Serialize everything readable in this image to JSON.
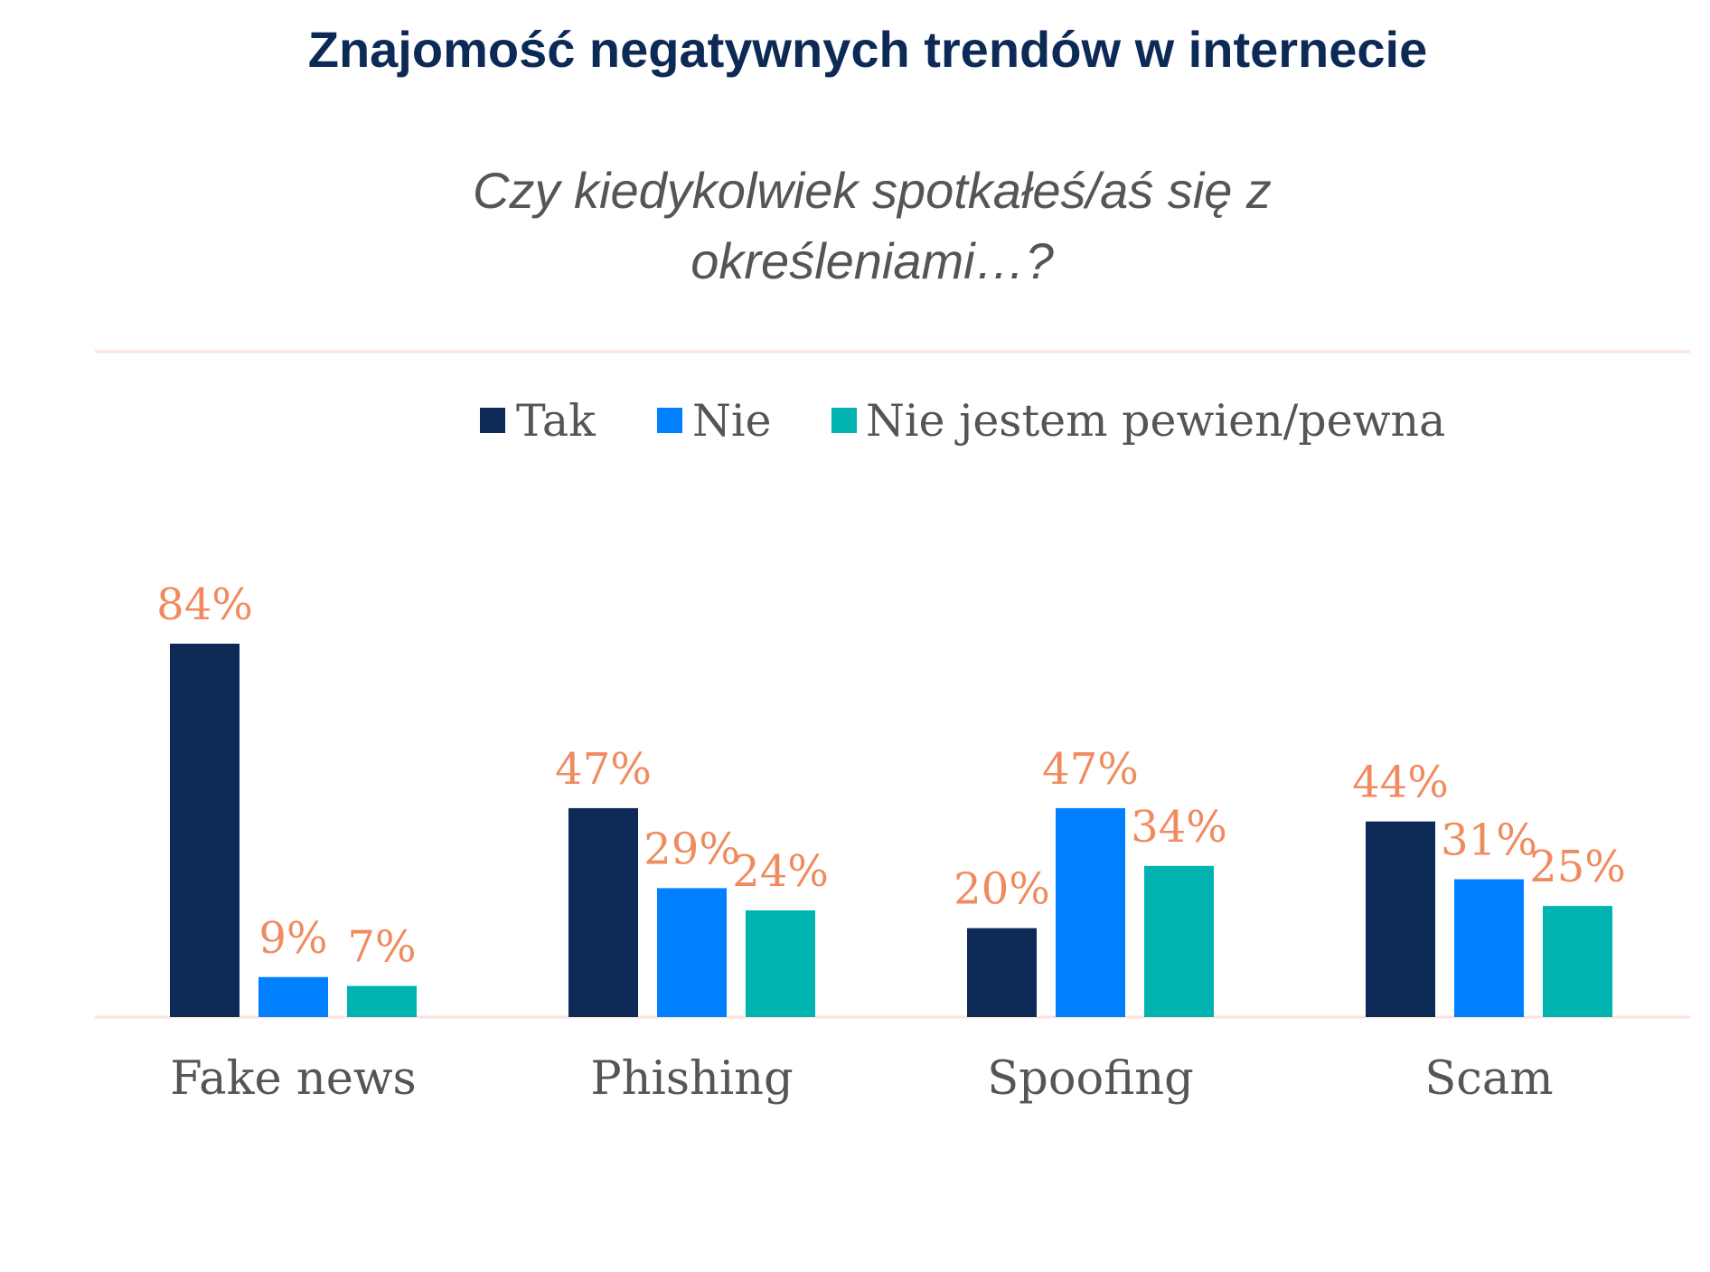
{
  "title": "Znajomość negatywnych trendów w internecie",
  "subtitle_lines": [
    "Czy kiedykolwiek spotkałeś/aś się z",
    "określeniami…?"
  ],
  "colors": {
    "title": "#0d2a57",
    "label_color": "#f08b5f",
    "axis_line": "#fbe3dc",
    "text_gray": "#555555"
  },
  "chart_data": {
    "type": "bar",
    "title": "Znajomość negatywnych trendów w internecie",
    "subtitle": "Czy kiedykolwiek spotkałeś/aś się z określeniami…?",
    "categories": [
      "Fake news",
      "Phishing",
      "Spoofing",
      "Scam"
    ],
    "series": [
      {
        "name": "Tak",
        "color": "#0d2a57",
        "values": [
          84,
          47,
          20,
          44
        ]
      },
      {
        "name": "Nie",
        "color": "#0080ff",
        "values": [
          9,
          29,
          47,
          31
        ]
      },
      {
        "name": "Nie jestem pewien/pewna",
        "color": "#00b3b0",
        "values": [
          7,
          24,
          34,
          25
        ]
      }
    ],
    "value_suffix": "%",
    "ylim": [
      0,
      84
    ],
    "grid": false,
    "legend_position": "top-center",
    "xlabel": "",
    "ylabel": ""
  }
}
